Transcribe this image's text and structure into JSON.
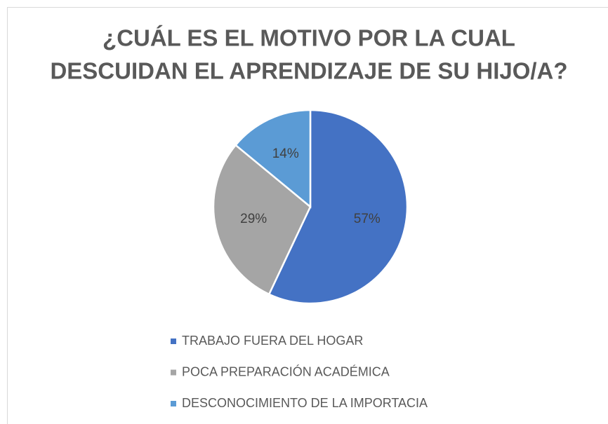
{
  "chart_data": {
    "type": "pie",
    "title": [
      "¿CUÁL ES EL MOTIVO POR LA CUAL",
      "DESCUIDAN EL APRENDIZAJE DE SU HIJO/A?"
    ],
    "categories": [
      "TRABAJO FUERA DEL HOGAR",
      "POCA PREPARACIÓN ACADÉMICA",
      "DESCONOCIMIENTO DE LA IMPORTACIA"
    ],
    "values": [
      57,
      29,
      14
    ],
    "value_labels": [
      "57%",
      "29%",
      "14%"
    ],
    "colors": [
      "#4472c4",
      "#a5a5a5",
      "#5b9bd5"
    ],
    "legend": "bottom"
  }
}
